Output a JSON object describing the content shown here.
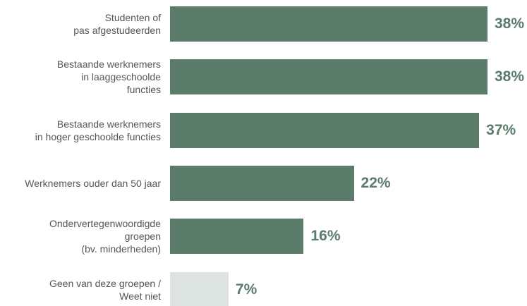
{
  "chart_data": {
    "type": "bar",
    "orientation": "horizontal",
    "categories": [
      "Studenten of\npas afgestudeerden",
      "Bestaande werknemers\nin laaggeschoolde\nfuncties",
      "Bestaande werknemers\nin hoger geschoolde functies",
      "Werknemers ouder dan 50 jaar",
      "Ondervertegenwoordigde\ngroepen\n(bv. minderheden)",
      "Geen van deze groepen /\nWeet niet"
    ],
    "values": [
      38,
      38,
      37,
      22,
      16,
      7
    ],
    "value_labels": [
      "38%",
      "38%",
      "37%",
      "22%",
      "16%",
      "7%"
    ],
    "colors": [
      "#5b7b6b",
      "#5b7b6b",
      "#5b7b6b",
      "#5b7b6b",
      "#5b7b6b",
      "#dce3e0"
    ],
    "label_color": "#5b7b6b"
  }
}
